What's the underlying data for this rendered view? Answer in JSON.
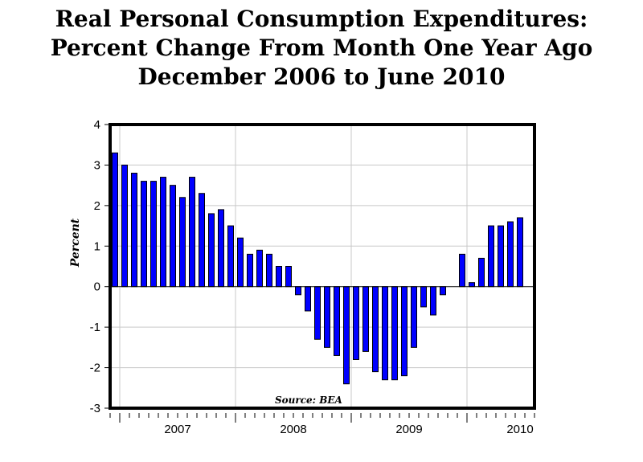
{
  "chart_data": {
    "type": "bar",
    "title_lines": [
      "Real Personal Consumption Expenditures:",
      "Percent Change From Month One Year Ago",
      "December 2006 to June 2010"
    ],
    "ylabel": "Percent",
    "xlabel": "",
    "source": "Source: BEA",
    "ylim": [
      -3,
      4
    ],
    "yticks": [
      4,
      3,
      2,
      1,
      0,
      -1,
      -2,
      -3
    ],
    "xtick_labels": [
      "2007",
      "2008",
      "2009",
      "2010"
    ],
    "grid": true,
    "bar_color": "#0000ff",
    "categories": [
      "Dec 2006",
      "Jan 2007",
      "Feb 2007",
      "Mar 2007",
      "Apr 2007",
      "May 2007",
      "Jun 2007",
      "Jul 2007",
      "Aug 2007",
      "Sep 2007",
      "Oct 2007",
      "Nov 2007",
      "Dec 2007",
      "Jan 2008",
      "Feb 2008",
      "Mar 2008",
      "Apr 2008",
      "May 2008",
      "Jun 2008",
      "Jul 2008",
      "Aug 2008",
      "Sep 2008",
      "Oct 2008",
      "Nov 2008",
      "Dec 2008",
      "Jan 2009",
      "Feb 2009",
      "Mar 2009",
      "Apr 2009",
      "May 2009",
      "Jun 2009",
      "Jul 2009",
      "Aug 2009",
      "Sep 2009",
      "Oct 2009",
      "Nov 2009",
      "Dec 2009",
      "Jan 2010",
      "Feb 2010",
      "Mar 2010",
      "Apr 2010",
      "May 2010",
      "Jun 2010"
    ],
    "values": [
      3.3,
      3.0,
      2.8,
      2.6,
      2.6,
      2.7,
      2.5,
      2.2,
      2.7,
      2.3,
      1.8,
      1.9,
      1.5,
      1.2,
      0.8,
      0.9,
      0.8,
      0.5,
      0.5,
      -0.2,
      -0.6,
      -1.3,
      -1.5,
      -1.7,
      -2.4,
      -1.8,
      -1.6,
      -2.1,
      -2.3,
      -2.3,
      -2.2,
      -1.5,
      -0.5,
      -0.7,
      -0.2,
      0.0,
      0.8,
      0.1,
      0.7,
      1.5,
      1.5,
      1.6,
      1.7
    ]
  }
}
